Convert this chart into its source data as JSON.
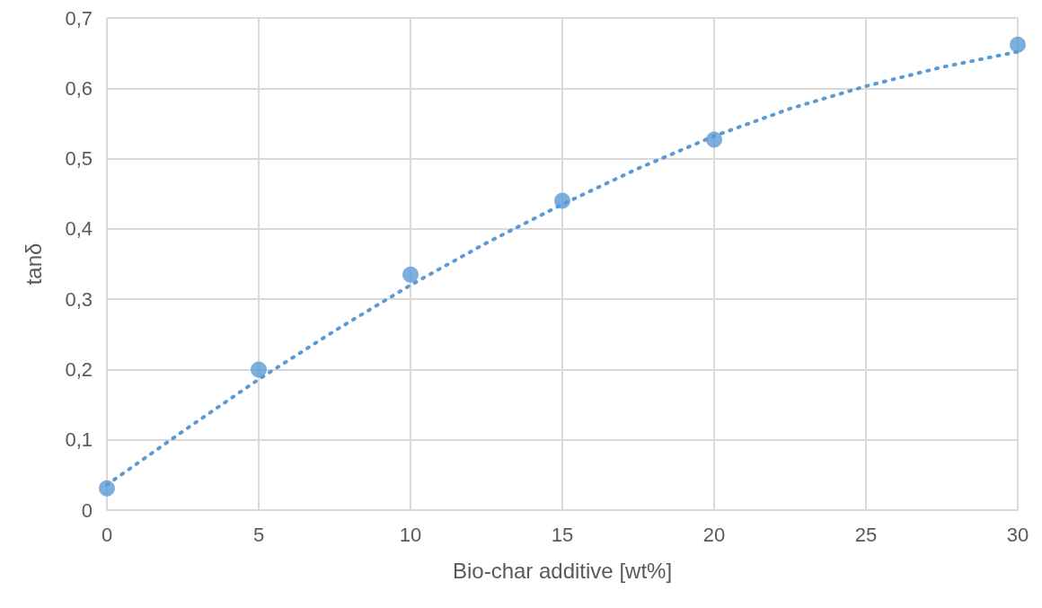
{
  "chart_data": {
    "type": "scatter",
    "xlabel": "Bio-char additive [wt%]",
    "ylabel": "tanδ",
    "xlim": [
      0,
      30
    ],
    "xticks": [
      0,
      5,
      10,
      15,
      20,
      25,
      30
    ],
    "ylim": [
      0,
      0.7
    ],
    "yticks": [
      0,
      {
        "value": 0.1,
        "label": "0,1"
      },
      {
        "value": 0.2,
        "label": "0,2"
      },
      {
        "value": 0.3,
        "label": "0,3"
      },
      {
        "value": 0.4,
        "label": "0,4"
      },
      {
        "value": 0.5,
        "label": "0,5"
      },
      {
        "value": 0.6,
        "label": "0,6"
      },
      {
        "value": 0.7,
        "label": "0,7"
      }
    ],
    "grid": true,
    "marker": "circle",
    "series": [
      {
        "type": "scatter",
        "color": "#5b9bd5",
        "x": [
          0,
          5,
          10,
          15,
          20,
          30
        ],
        "values": [
          0.031,
          0.2,
          0.335,
          0.44,
          0.527,
          0.662
        ]
      },
      {
        "type": "line",
        "color": "#5b9bd5",
        "line_style": "dotted",
        "marker": "none",
        "x": [
          0,
          2.5,
          5,
          7.5,
          10,
          12.5,
          15,
          17.5,
          20,
          22.5,
          25,
          27.5,
          30
        ],
        "values": [
          0.036,
          0.112,
          0.186,
          0.255,
          0.32,
          0.38,
          0.435,
          0.486,
          0.532,
          0.571,
          0.603,
          0.63,
          0.652
        ]
      }
    ]
  }
}
